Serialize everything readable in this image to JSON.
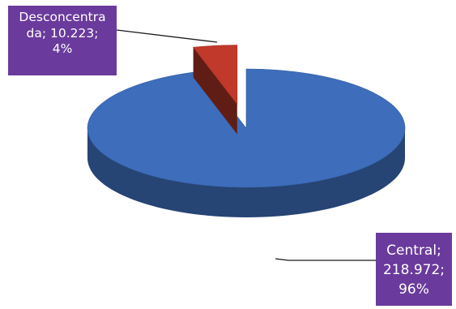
{
  "chart_data": {
    "type": "pie",
    "title": "",
    "style": "3d",
    "exploded_slice": "Desconcentrada",
    "slices": [
      {
        "name": "Desconcentrada",
        "value": 10223,
        "percent": 4,
        "color": "#c0392b",
        "label_lines": [
          "Desconcentra",
          "da; 10.223;",
          "4%"
        ]
      },
      {
        "name": "Central",
        "value": 218972,
        "percent": 96,
        "color": "#3d6dbb",
        "label_lines": [
          "Central;",
          "218.972;",
          "96%"
        ]
      }
    ],
    "label_box_color": "#6a3a9c",
    "leader_line_color": "#1a1a1a"
  }
}
